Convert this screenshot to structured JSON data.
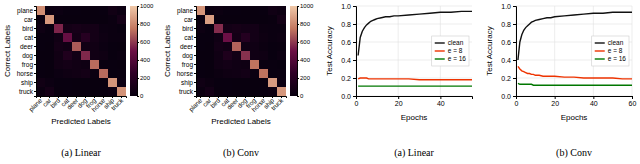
{
  "chart_data": [
    {
      "type": "heatmap",
      "caption": "(a) Linear",
      "x_label": "Predicted Labels",
      "y_label": "Correct Labels",
      "categories": [
        "plane",
        "car",
        "bird",
        "cat",
        "deer",
        "dog",
        "frog",
        "horse",
        "ship",
        "truck"
      ],
      "values": [
        [
          820,
          20,
          30,
          10,
          10,
          5,
          5,
          10,
          60,
          30
        ],
        [
          10,
          850,
          5,
          5,
          5,
          5,
          5,
          5,
          20,
          90
        ],
        [
          40,
          10,
          550,
          80,
          100,
          80,
          80,
          30,
          20,
          10
        ],
        [
          10,
          10,
          60,
          480,
          80,
          200,
          80,
          40,
          20,
          20
        ],
        [
          10,
          5,
          80,
          60,
          680,
          60,
          60,
          30,
          10,
          5
        ],
        [
          5,
          5,
          60,
          160,
          70,
          560,
          60,
          50,
          10,
          20
        ],
        [
          10,
          5,
          60,
          80,
          60,
          50,
          720,
          10,
          10,
          5
        ],
        [
          10,
          5,
          30,
          50,
          60,
          80,
          20,
          720,
          10,
          15
        ],
        [
          60,
          30,
          10,
          10,
          5,
          5,
          5,
          5,
          840,
          30
        ],
        [
          20,
          80,
          5,
          10,
          5,
          5,
          5,
          10,
          30,
          830
        ]
      ],
      "colorbar_range": [
        0,
        1000
      ],
      "colorbar_ticks": [
        0,
        200,
        400,
        600,
        800,
        1000
      ],
      "colorscale": [
        "#08000f",
        "#2d0025",
        "#6b0f45",
        "#c47860",
        "#f0c8a8"
      ]
    },
    {
      "type": "heatmap",
      "caption": "(b) Conv",
      "x_label": "Predicted Labels",
      "y_label": "Correct Labels",
      "categories": [
        "plane",
        "car",
        "bird",
        "cat",
        "deer",
        "dog",
        "frog",
        "horse",
        "ship",
        "truck"
      ],
      "values": [
        [
          840,
          15,
          25,
          8,
          8,
          4,
          4,
          8,
          55,
          33
        ],
        [
          8,
          870,
          4,
          4,
          4,
          4,
          4,
          4,
          15,
          83
        ],
        [
          35,
          8,
          570,
          75,
          95,
          75,
          75,
          28,
          18,
          21
        ],
        [
          8,
          8,
          55,
          500,
          75,
          190,
          75,
          38,
          18,
          33
        ],
        [
          8,
          4,
          75,
          55,
          700,
          55,
          55,
          28,
          8,
          12
        ],
        [
          4,
          4,
          55,
          150,
          65,
          580,
          55,
          48,
          8,
          31
        ],
        [
          8,
          4,
          55,
          75,
          55,
          45,
          740,
          8,
          8,
          2
        ],
        [
          8,
          4,
          28,
          48,
          55,
          75,
          18,
          740,
          8,
          16
        ],
        [
          55,
          28,
          8,
          8,
          4,
          4,
          4,
          4,
          860,
          25
        ],
        [
          18,
          75,
          4,
          8,
          4,
          4,
          4,
          8,
          28,
          847
        ]
      ],
      "colorbar_range": [
        0,
        1000
      ],
      "colorbar_ticks": [
        0,
        200,
        400,
        600,
        800,
        1000
      ],
      "colorscale": [
        "#08000f",
        "#2d0025",
        "#6b0f45",
        "#c47860",
        "#f0c8a8"
      ]
    },
    {
      "type": "line",
      "caption": "(a) Linear",
      "x_label": "Epochs",
      "y_label": "Test Accuracy",
      "x": [
        1,
        2,
        3,
        4,
        5,
        6,
        7,
        8,
        9,
        10,
        12,
        14,
        16,
        18,
        20,
        25,
        30,
        35,
        40,
        45,
        50,
        55
      ],
      "series": [
        {
          "name": "clean",
          "color": "#111111",
          "values": [
            0.45,
            0.65,
            0.72,
            0.76,
            0.79,
            0.81,
            0.83,
            0.84,
            0.85,
            0.86,
            0.87,
            0.88,
            0.88,
            0.89,
            0.89,
            0.9,
            0.91,
            0.92,
            0.93,
            0.93,
            0.94,
            0.94
          ]
        },
        {
          "name": "e = 8",
          "color": "#ee3300",
          "values": [
            0.19,
            0.2,
            0.2,
            0.2,
            0.2,
            0.19,
            0.19,
            0.19,
            0.19,
            0.19,
            0.19,
            0.19,
            0.19,
            0.19,
            0.19,
            0.19,
            0.18,
            0.18,
            0.18,
            0.18,
            0.18,
            0.18
          ]
        },
        {
          "name": "e = 16",
          "color": "#007700",
          "values": [
            0.11,
            0.11,
            0.11,
            0.11,
            0.11,
            0.11,
            0.11,
            0.11,
            0.11,
            0.11,
            0.11,
            0.11,
            0.11,
            0.11,
            0.11,
            0.11,
            0.11,
            0.11,
            0.11,
            0.11,
            0.11,
            0.11
          ]
        }
      ],
      "xlim": [
        0,
        55
      ],
      "xticks": [
        0,
        20,
        40
      ],
      "ylim": [
        0,
        1.0
      ],
      "yticks": [
        {
          "value": 0,
          "label": "0.0"
        },
        0.2,
        0.4,
        0.6,
        0.8,
        {
          "value": 1.0,
          "label": "1.0"
        }
      ],
      "grid": true,
      "legend": "right"
    },
    {
      "type": "line",
      "caption": "(b) Conv",
      "x_label": "Epochs",
      "y_label": "Test Accuracy",
      "x": [
        1,
        2,
        3,
        4,
        5,
        6,
        7,
        8,
        9,
        10,
        12,
        14,
        16,
        18,
        20,
        25,
        30,
        35,
        40,
        45,
        50,
        55,
        60
      ],
      "series": [
        {
          "name": "clean",
          "color": "#111111",
          "values": [
            0.4,
            0.6,
            0.68,
            0.73,
            0.76,
            0.78,
            0.8,
            0.82,
            0.83,
            0.84,
            0.85,
            0.86,
            0.87,
            0.87,
            0.88,
            0.89,
            0.9,
            0.91,
            0.92,
            0.92,
            0.93,
            0.93,
            0.93
          ]
        },
        {
          "name": "e = 8",
          "color": "#ee3300",
          "values": [
            0.33,
            0.3,
            0.28,
            0.27,
            0.26,
            0.25,
            0.25,
            0.24,
            0.24,
            0.23,
            0.23,
            0.22,
            0.22,
            0.22,
            0.22,
            0.21,
            0.21,
            0.2,
            0.2,
            0.2,
            0.2,
            0.19,
            0.19
          ]
        },
        {
          "name": "e = 16",
          "color": "#007700",
          "values": [
            0.14,
            0.13,
            0.13,
            0.13,
            0.13,
            0.13,
            0.13,
            0.13,
            0.12,
            0.12,
            0.12,
            0.12,
            0.12,
            0.12,
            0.12,
            0.12,
            0.12,
            0.12,
            0.12,
            0.12,
            0.12,
            0.12,
            0.12
          ]
        }
      ],
      "xlim": [
        0,
        60
      ],
      "xticks": [
        0,
        20,
        40,
        60
      ],
      "ylim": [
        0,
        1.0
      ],
      "yticks": [
        {
          "value": 0,
          "label": "0.0"
        },
        0.2,
        0.4,
        0.6,
        0.8,
        {
          "value": 1.0,
          "label": "1.0"
        }
      ],
      "grid": true,
      "legend": "right"
    }
  ]
}
